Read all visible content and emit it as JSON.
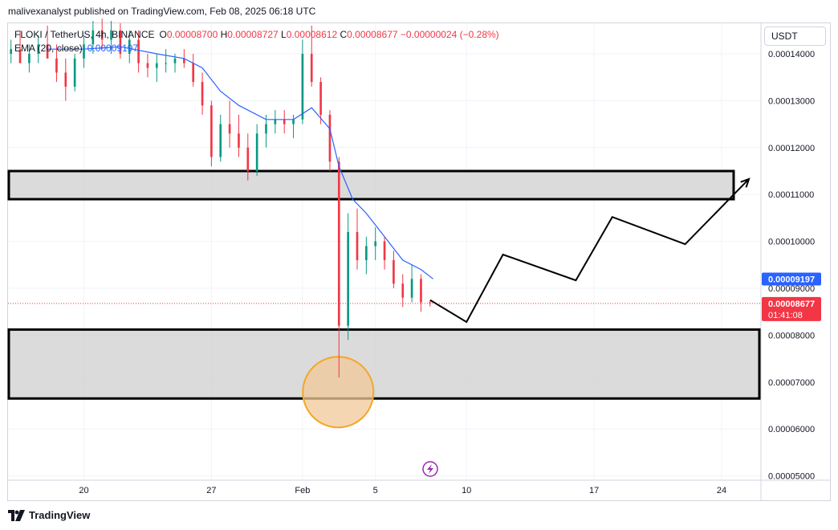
{
  "attribution": "malivexanalyst published on TradingView.com, Feb 08, 2025 06:18 UTC",
  "legend": {
    "symbol": "FLOKI / TetherUS, 4h, BINANCE",
    "open_label": "O",
    "open": "0.00008700",
    "high_label": "H",
    "high": "0.00008727",
    "low_label": "L",
    "low": "0.00008612",
    "close_label": "C",
    "close": "0.00008677",
    "change": "−0.00000024 (−0.28%)",
    "ema_label": "EMA (20, close)",
    "ema_value": "0.00009197"
  },
  "currency": "USDT",
  "branding": "TradingView",
  "colors": {
    "up": "#089981",
    "down": "#f23645",
    "ema": "#2962ff",
    "zone_fill": "#cfcfcf",
    "circle_stroke": "#f5a623",
    "circle_fill": "#f0c89a",
    "price_line": "#f23645"
  },
  "chart_data": {
    "type": "candlestick",
    "timeframe": "4h",
    "y_axis": {
      "ticks": [
        "0.00014000",
        "0.00013000",
        "0.00012000",
        "0.00011000",
        "0.00010000",
        "0.00009000",
        "0.00008000",
        "0.00007000",
        "0.00006000",
        "0.00005000"
      ],
      "range": [
        4.97e-05,
        0.0001478
      ]
    },
    "x_axis": {
      "ticks": [
        "20",
        "27",
        "Feb",
        "5",
        "10",
        "17",
        "24"
      ],
      "tick_dates": [
        "2025-01-20",
        "2025-01-27",
        "2025-02-01",
        "2025-02-05",
        "2025-02-10",
        "2025-02-17",
        "2025-02-24"
      ]
    },
    "price_tags": [
      {
        "label": "EMA",
        "value": "0.00009197",
        "color": "#2962ff"
      },
      {
        "label": "Last",
        "value": "0.00008677",
        "countdown": "01:41:08",
        "color": "#f23645"
      }
    ],
    "candles_approx": [
      [
        "2025-01-16 00",
        0.00014,
        0.000143,
        0.000138,
        0.000141
      ],
      [
        "2025-01-16 12",
        0.000141,
        0.000145,
        0.000139,
        0.000138
      ],
      [
        "2025-01-17 00",
        0.000138,
        0.000142,
        0.000136,
        0.00014
      ],
      [
        "2025-01-17 12",
        0.00014,
        0.000144,
        0.000138,
        0.000142
      ],
      [
        "2025-01-18 00",
        0.000142,
        0.000146,
        0.000139,
        0.000139
      ],
      [
        "2025-01-18 12",
        0.000139,
        0.000142,
        0.000134,
        0.000136
      ],
      [
        "2025-01-19 00",
        0.000136,
        0.000139,
        0.00013,
        0.000133
      ],
      [
        "2025-01-19 12",
        0.000133,
        0.00014,
        0.000132,
        0.000139
      ],
      [
        "2025-01-20 00",
        0.000139,
        0.000144,
        0.000137,
        0.000142
      ],
      [
        "2025-01-20 12",
        0.000142,
        0.000147,
        0.00014,
        0.000145
      ],
      [
        "2025-01-21 00",
        0.000145,
        0.0001475,
        0.000141,
        0.000143
      ],
      [
        "2025-01-21 12",
        0.000143,
        0.000147,
        0.00014,
        0.000145
      ],
      [
        "2025-01-22 00",
        0.000145,
        0.0001465,
        0.000139,
        0.00014
      ],
      [
        "2025-01-22 12",
        0.00014,
        0.000145,
        0.000138,
        0.000143
      ],
      [
        "2025-01-23 00",
        0.000143,
        0.000145,
        0.000136,
        0.000138
      ],
      [
        "2025-01-23 12",
        0.000138,
        0.00014,
        0.000135,
        0.000137
      ],
      [
        "2025-01-24 00",
        0.000137,
        0.00014,
        0.000134,
        0.000138
      ],
      [
        "2025-01-24 12",
        0.000138,
        0.000141,
        0.000136,
        0.000138
      ],
      [
        "2025-01-25 00",
        0.000138,
        0.00014,
        0.000136,
        0.000139
      ],
      [
        "2025-01-25 12",
        0.000139,
        0.000141,
        0.000137,
        0.000138
      ],
      [
        "2025-01-26 00",
        0.000138,
        0.00014,
        0.000133,
        0.000134
      ],
      [
        "2025-01-26 12",
        0.000134,
        0.000136,
        0.000127,
        0.000129
      ],
      [
        "2025-01-27 00",
        0.000129,
        0.00013,
        0.000116,
        0.000118
      ],
      [
        "2025-01-27 12",
        0.000118,
        0.000127,
        0.000117,
        0.000125
      ],
      [
        "2025-01-28 00",
        0.000125,
        0.00013,
        0.00012,
        0.000123
      ],
      [
        "2025-01-28 12",
        0.000123,
        0.000127,
        0.000118,
        0.00012
      ],
      [
        "2025-01-29 00",
        0.00012,
        0.000123,
        0.000113,
        0.000115
      ],
      [
        "2025-01-29 12",
        0.000115,
        0.000125,
        0.000114,
        0.000123
      ],
      [
        "2025-01-30 00",
        0.000123,
        0.000127,
        0.00012,
        0.000125
      ],
      [
        "2025-01-30 12",
        0.000125,
        0.000128,
        0.000123,
        0.000126
      ],
      [
        "2025-01-31 00",
        0.000126,
        0.000128,
        0.000123,
        0.000125
      ],
      [
        "2025-01-31 12",
        0.000125,
        0.000127,
        0.000122,
        0.000126
      ],
      [
        "2025-02-01 00",
        0.000126,
        0.000143,
        0.000125,
        0.00014
      ],
      [
        "2025-02-01 12",
        0.00014,
        0.000146,
        0.000133,
        0.000134
      ],
      [
        "2025-02-02 00",
        0.000134,
        0.000135,
        0.000125,
        0.000127
      ],
      [
        "2025-02-02 12",
        0.000127,
        0.000128,
        0.000115,
        0.000117
      ],
      [
        "2025-02-03 00",
        0.000117,
        0.000118,
        7.1e-05,
        8.2e-05
      ],
      [
        "2025-02-03 12",
        8.2e-05,
        0.000106,
        7.9e-05,
        0.000102
      ],
      [
        "2025-02-04 00",
        0.000102,
        0.000107,
        9.4e-05,
        9.6e-05
      ],
      [
        "2025-02-04 12",
        9.6e-05,
        0.000101,
        9.3e-05,
        9.9e-05
      ],
      [
        "2025-02-05 00",
        9.9e-05,
        0.000103,
        9.6e-05,
        0.0001
      ],
      [
        "2025-02-05 12",
        0.0001,
        0.000101,
        9.4e-05,
        9.6e-05
      ],
      [
        "2025-02-06 00",
        9.6e-05,
        9.8e-05,
        9e-05,
        9.1e-05
      ],
      [
        "2025-02-06 12",
        9.1e-05,
        9.3e-05,
        8.6e-05,
        8.8e-05
      ],
      [
        "2025-02-07 00",
        8.8e-05,
        9.5e-05,
        8.7e-05,
        9.2e-05
      ],
      [
        "2025-02-07 12",
        9.2e-05,
        9.3e-05,
        8.5e-05,
        8.7e-05
      ],
      [
        "2025-02-08 00",
        8.7e-05,
        8.73e-05,
        8.61e-05,
        8.68e-05
      ]
    ],
    "ema_approx": [
      [
        "2025-01-18 00",
        0.000141
      ],
      [
        "2025-01-20 00",
        0.000141
      ],
      [
        "2025-01-22 00",
        0.0001415
      ],
      [
        "2025-01-24 00",
        0.00014
      ],
      [
        "2025-01-25 12",
        0.000139
      ],
      [
        "2025-01-26 12",
        0.000137
      ],
      [
        "2025-01-27 12",
        0.000132
      ],
      [
        "2025-01-28 12",
        0.000129
      ],
      [
        "2025-01-30 00",
        0.000126
      ],
      [
        "2025-01-31 12",
        0.000126
      ],
      [
        "2025-02-01 12",
        0.0001285
      ],
      [
        "2025-02-02 12",
        0.000124
      ],
      [
        "2025-02-03 00",
        0.000116
      ],
      [
        "2025-02-03 18",
        0.000109
      ],
      [
        "2025-02-04 12",
        0.000106
      ],
      [
        "2025-02-05 12",
        0.000101
      ],
      [
        "2025-02-06 12",
        9.6e-05
      ],
      [
        "2025-02-07 12",
        9.4e-05
      ],
      [
        "2025-02-08 04",
        9.2e-05
      ]
    ],
    "zones": [
      {
        "low": 0.000109,
        "high": 0.000115
      },
      {
        "low": 6.65e-05,
        "high": 8.12e-05
      }
    ],
    "projection_path": [
      [
        "2025-02-08 00",
        8.75e-05
      ],
      [
        "2025-02-10 00",
        8.28e-05
      ],
      [
        "2025-02-12 00",
        9.72e-05
      ],
      [
        "2025-02-16 00",
        9.17e-05
      ],
      [
        "2025-02-18 00",
        0.0001052
      ],
      [
        "2025-02-22 00",
        9.94e-05
      ],
      [
        "2025-02-25 12",
        0.0001133
      ]
    ],
    "highlight_circle": {
      "date": "2025-02-03 00",
      "value": 7.3e-05
    }
  }
}
